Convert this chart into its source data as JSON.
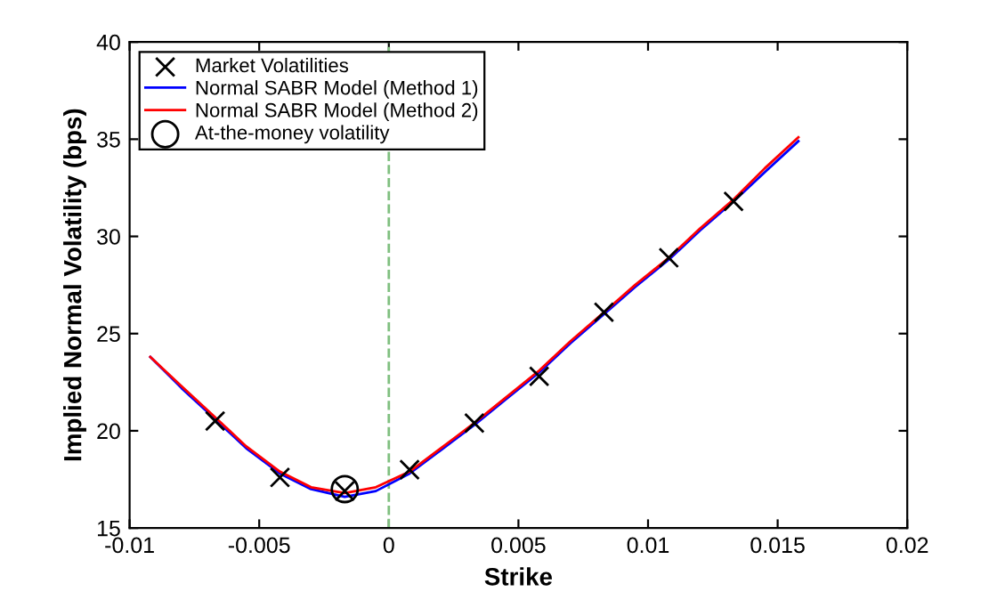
{
  "chart_data": {
    "type": "line",
    "xlabel": "Strike",
    "ylabel": "Implied Normal Volatility (bps)",
    "xlim": [
      -0.01,
      0.02
    ],
    "xticks": [
      {
        "value": -0.01,
        "label": "-0.01"
      },
      {
        "value": -0.005,
        "label": "-0.005"
      },
      {
        "value": 0,
        "label": "0"
      },
      {
        "value": 0.005,
        "label": "0.005"
      },
      {
        "value": 0.01,
        "label": "0.01"
      },
      {
        "value": 0.015,
        "label": "0.015"
      },
      {
        "value": 0.02,
        "label": "0.02"
      }
    ],
    "ylim": [
      15,
      40
    ],
    "yticks": [
      15,
      20,
      25,
      30,
      35,
      40
    ],
    "grid": false,
    "legend": "top left",
    "ref_lines": [
      {
        "axis": "x",
        "value": 0,
        "color": "#7fbf7f",
        "line_style": "dashed"
      }
    ],
    "series": [
      {
        "name": "Market Volatilities",
        "type": "scatter",
        "marker": "cross",
        "color": "#000000",
        "x": [
          -0.0067,
          -0.0042,
          -0.0017,
          0.0008,
          0.0033,
          0.0058,
          0.0083,
          0.0108,
          0.0133
        ],
        "values": [
          20.5,
          17.6,
          16.9,
          18.0,
          20.4,
          22.8,
          26.1,
          28.9,
          31.8
        ]
      },
      {
        "name": "Normal SABR Model (Method 1)",
        "marker": "none",
        "color": "#0000ff",
        "x": [
          -0.0092,
          -0.008,
          -0.0067,
          -0.0055,
          -0.0042,
          -0.003,
          -0.0017,
          -0.0005,
          0.0008,
          0.002,
          0.0033,
          0.0045,
          0.0058,
          0.007,
          0.0083,
          0.0095,
          0.0108,
          0.012,
          0.0133,
          0.0145,
          0.0158
        ],
        "values": [
          23.8,
          22.2,
          20.6,
          19.1,
          17.8,
          17.0,
          16.6,
          16.9,
          17.8,
          19.0,
          20.3,
          21.6,
          23.0,
          24.5,
          26.0,
          27.4,
          28.8,
          30.3,
          31.8,
          33.3,
          34.9
        ]
      },
      {
        "name": "Normal SABR Model (Method 2)",
        "marker": "none",
        "color": "#ff0000",
        "x": [
          -0.0092,
          -0.008,
          -0.0067,
          -0.0055,
          -0.0042,
          -0.003,
          -0.0017,
          -0.0005,
          0.0008,
          0.002,
          0.0033,
          0.0045,
          0.0058,
          0.007,
          0.0083,
          0.0095,
          0.0108,
          0.012,
          0.0133,
          0.0145,
          0.0158
        ],
        "values": [
          23.8,
          22.3,
          20.7,
          19.2,
          17.9,
          17.1,
          16.8,
          17.1,
          17.9,
          19.1,
          20.4,
          21.7,
          23.1,
          24.6,
          26.1,
          27.5,
          28.9,
          30.4,
          31.9,
          33.5,
          35.1
        ]
      },
      {
        "name": "At-the-money volatility",
        "type": "scatter",
        "marker": "circle",
        "color": "#000000",
        "x": [
          -0.0017
        ],
        "values": [
          17.0
        ]
      }
    ]
  }
}
